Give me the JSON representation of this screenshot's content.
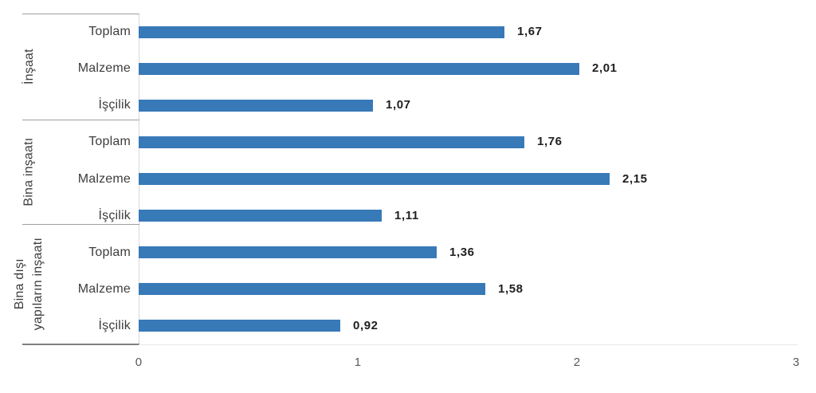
{
  "chart_data": {
    "type": "bar",
    "orientation": "horizontal",
    "title": "",
    "xlabel": "",
    "ylabel": "",
    "grid": false,
    "legend": "none",
    "x_axis": {
      "min": 0,
      "max": 3,
      "ticks": [
        "0",
        "1",
        "2",
        "3"
      ]
    },
    "groups": [
      {
        "label": "İnşaat",
        "label_lines": [
          "İnşaat"
        ],
        "items": [
          {
            "label": "Toplam",
            "value": 1.67,
            "value_label": "1,67"
          },
          {
            "label": "Malzeme",
            "value": 2.01,
            "value_label": "2,01"
          },
          {
            "label": "İşçilik",
            "value": 1.07,
            "value_label": "1,07"
          }
        ]
      },
      {
        "label": "Bina inşaatı",
        "label_lines": [
          "Bina inşaatı"
        ],
        "items": [
          {
            "label": "Toplam",
            "value": 1.76,
            "value_label": "1,76"
          },
          {
            "label": "Malzeme",
            "value": 2.15,
            "value_label": "2,15"
          },
          {
            "label": "İşçilik",
            "value": 1.11,
            "value_label": "1,11"
          }
        ]
      },
      {
        "label": "Bina dışı yapıların inşaatı",
        "label_lines": [
          "Bina dışı",
          "yapıların inşaatı"
        ],
        "items": [
          {
            "label": "Toplam",
            "value": 1.36,
            "value_label": "1,36"
          },
          {
            "label": "Malzeme",
            "value": 1.58,
            "value_label": "1,58"
          },
          {
            "label": "İşçilik",
            "value": 0.92,
            "value_label": "0,92"
          }
        ]
      }
    ],
    "colors": {
      "bar": "#3879b8",
      "item_label": "#3d3d3d",
      "group_label": "#3d3d3d",
      "value_label": "#1f1f1f",
      "tick_label": "#595959",
      "divider_line": "#a0a0a0",
      "category_axis_bottom": "#7f7f7f",
      "value_axis_line": "#e8e8e8",
      "category_axis_line": "#d9d9d9",
      "background": "#ffffff"
    }
  }
}
